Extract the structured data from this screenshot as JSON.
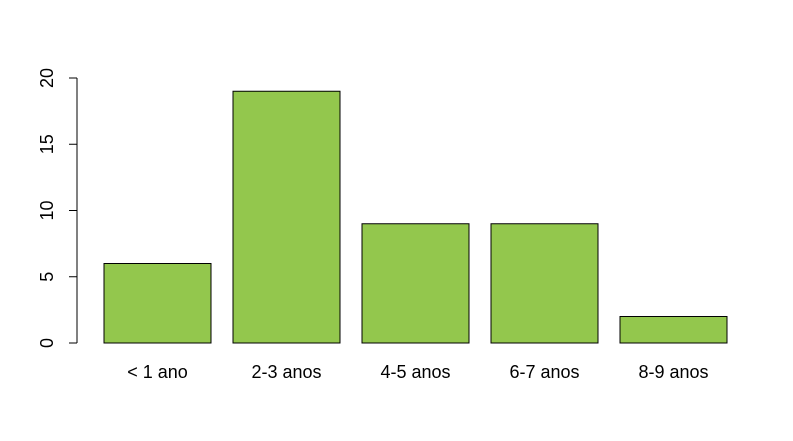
{
  "chart_data": {
    "type": "bar",
    "categories": [
      "< 1 ano",
      "2-3 anos",
      "4-5 anos",
      "6-7 anos",
      "8-9 anos"
    ],
    "values": [
      6,
      19,
      9,
      9,
      2
    ],
    "title": "",
    "xlabel": "",
    "ylabel": "",
    "ylim": [
      0,
      20
    ],
    "yticks": [
      0,
      5,
      10,
      15,
      20
    ],
    "grid": false,
    "bar_color": "#93c74d",
    "border_color": "#000000"
  }
}
